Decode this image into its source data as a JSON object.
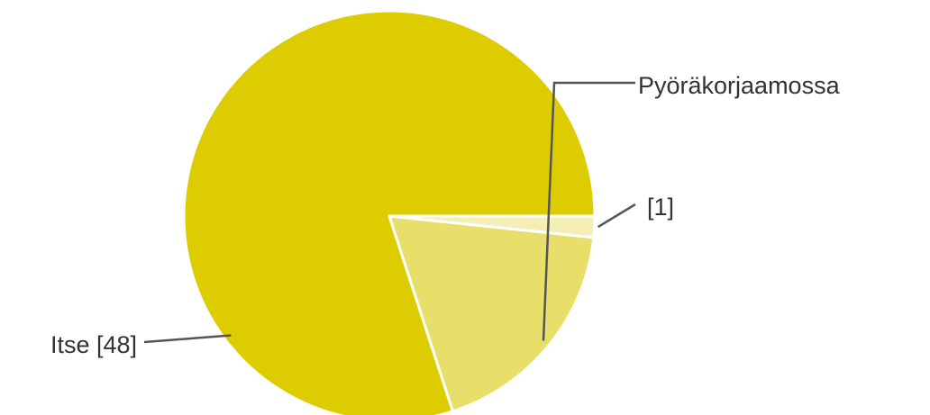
{
  "chart_data": {
    "type": "pie",
    "title": "",
    "slices": [
      {
        "label": "Itse [48]",
        "value": 48,
        "color": "#dccc00"
      },
      {
        "label": "Pyöräkorjaamossa",
        "value": 11,
        "color": "#e8df6a"
      },
      {
        "label": "[1]",
        "value": 1,
        "color": "#f4efb6"
      }
    ],
    "start": "3 o'clock, counterclockwise"
  }
}
